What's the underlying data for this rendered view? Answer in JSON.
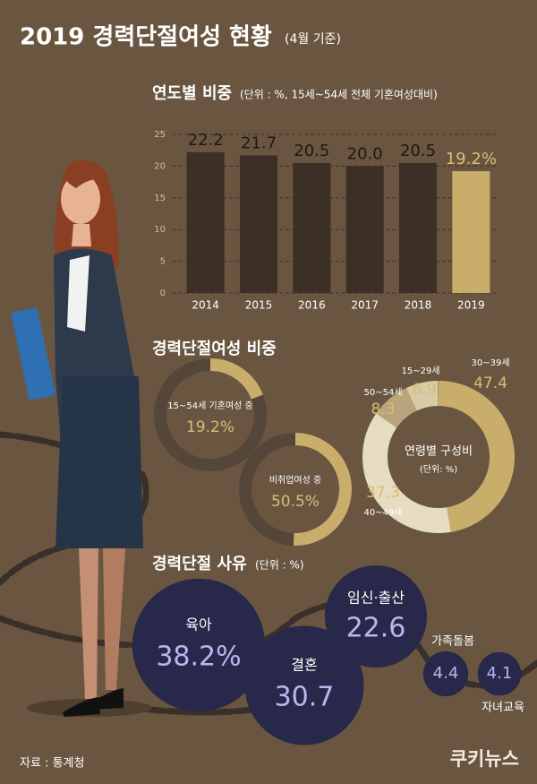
{
  "title": "2019 경력단절여성 현황",
  "title_note": "(4월 기준)",
  "source": "자료 : 통계청",
  "logo": "쿠키뉴스",
  "chart_data": [
    {
      "type": "bar",
      "title": "연도별 비중",
      "subtitle": "(단위 : %, 15세~54세 전체 기혼여성대비)",
      "categories": [
        "2014",
        "2015",
        "2016",
        "2017",
        "2018",
        "2019"
      ],
      "values": [
        22.2,
        21.7,
        20.5,
        20.0,
        20.5,
        19.2
      ],
      "value_labels": [
        "22.2",
        "21.7",
        "20.5",
        "20.0",
        "20.5",
        "19.2%"
      ],
      "colors": [
        "#3b2f26",
        "#3b2f26",
        "#3b2f26",
        "#3b2f26",
        "#3b2f26",
        "#c9ad6b"
      ],
      "ylim": [
        0,
        25
      ],
      "yticks": [
        0,
        5,
        10,
        15,
        20,
        25
      ],
      "grid": true
    },
    {
      "type": "donut",
      "title": "경력단절여성 비중",
      "categories": [
        "15~54세 기혼여성 중",
        "비취업여성 중"
      ],
      "values": [
        19.2,
        50.5
      ],
      "value_labels": [
        "19.2%",
        "50.5%"
      ],
      "color": "#c9ad6b"
    },
    {
      "type": "ring",
      "title": "연령별 구성비",
      "subtitle": "(단위: %)",
      "categories": [
        "30~39세",
        "40~49세",
        "50~54세",
        "15~29세"
      ],
      "values": [
        47.4,
        37.3,
        8.3,
        6.9
      ],
      "colors": [
        "#c9ad6b",
        "#e6dcc0",
        "#b9a57c",
        "#d8cba6"
      ]
    },
    {
      "type": "bubble",
      "title": "경력단절 사유",
      "subtitle": "(단위 : %)",
      "categories": [
        "육아",
        "결혼",
        "임신·출산",
        "가족돌봄",
        "자녀교육"
      ],
      "values": [
        38.2,
        30.7,
        22.6,
        4.4,
        4.1
      ],
      "value_labels": [
        "38.2%",
        "30.7",
        "22.6",
        "4.4",
        "4.1"
      ],
      "color": "#27284a"
    }
  ]
}
